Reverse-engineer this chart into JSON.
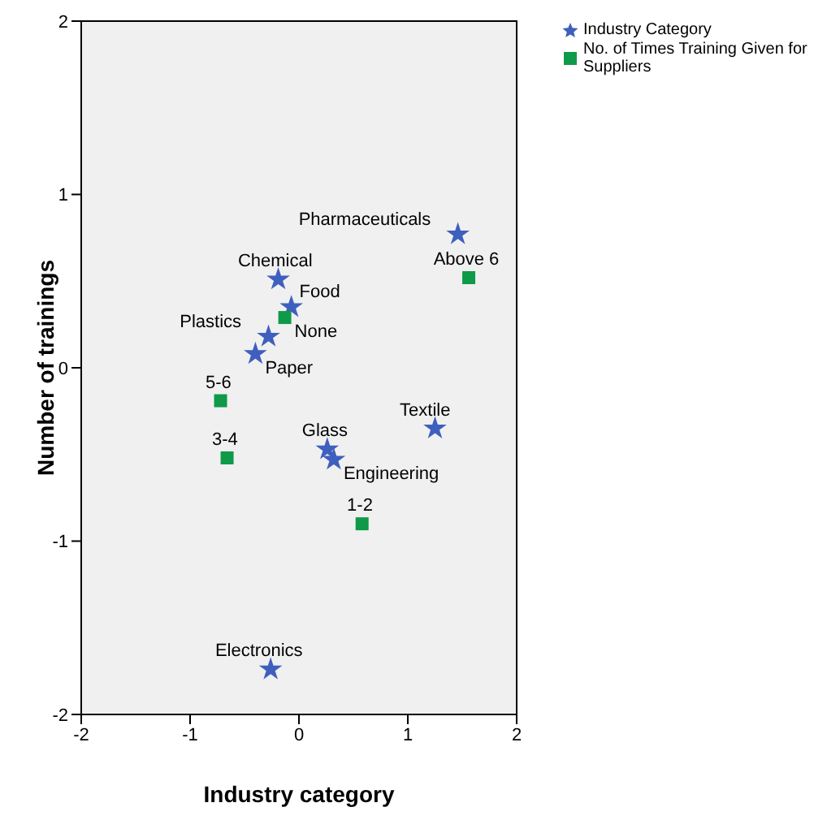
{
  "chart_data": {
    "type": "scatter",
    "xlabel": "Industry category",
    "ylabel": "Number of trainings",
    "xlim": [
      -2,
      2
    ],
    "ylim": [
      -2,
      2
    ],
    "xticks": [
      -2,
      -1,
      0,
      1,
      2
    ],
    "yticks": [
      -2,
      -1,
      0,
      1,
      2
    ],
    "legend": "top right",
    "series": [
      {
        "name": "Industry Category",
        "color": "#3f5fbf",
        "marker": "star",
        "x": [
          1.46,
          -0.19,
          -0.07,
          -0.28,
          -0.4,
          0.26,
          0.32,
          1.25,
          -0.26
        ],
        "values": [
          0.77,
          0.51,
          0.35,
          0.18,
          0.08,
          -0.47,
          -0.53,
          -0.35,
          -1.74
        ]
      },
      {
        "name": "No. of Times Training Given for Suppliers",
        "color": "#0e9a48",
        "marker": "square",
        "x": [
          -0.13,
          -0.72,
          -0.66,
          0.58,
          1.56
        ],
        "values": [
          0.29,
          -0.19,
          -0.52,
          -0.9,
          0.52
        ]
      }
    ],
    "annotations": [
      {
        "text": "Pharmaceuticals",
        "x": 1.46,
        "y": 0.77
      },
      {
        "text": "Chemical",
        "x": -0.19,
        "y": 0.51
      },
      {
        "text": "None",
        "x": -0.13,
        "y": 0.29
      },
      {
        "text": "Food",
        "x": -0.07,
        "y": 0.35
      },
      {
        "text": "Plastics",
        "x": -0.28,
        "y": 0.18
      },
      {
        "text": "Paper",
        "x": -0.4,
        "y": 0.08
      },
      {
        "text": "5-6",
        "x": -0.72,
        "y": -0.19
      },
      {
        "text": "3-4",
        "x": -0.66,
        "y": -0.52
      },
      {
        "text": "Glass",
        "x": 0.26,
        "y": -0.47
      },
      {
        "text": "Engineering",
        "x": 0.32,
        "y": -0.53
      },
      {
        "text": "Textile",
        "x": 1.25,
        "y": -0.35
      },
      {
        "text": "1-2",
        "x": 0.58,
        "y": -0.9
      },
      {
        "text": "Above 6",
        "x": 1.56,
        "y": 0.52
      },
      {
        "text": "Electronics",
        "x": -0.26,
        "y": -1.74
      }
    ]
  }
}
